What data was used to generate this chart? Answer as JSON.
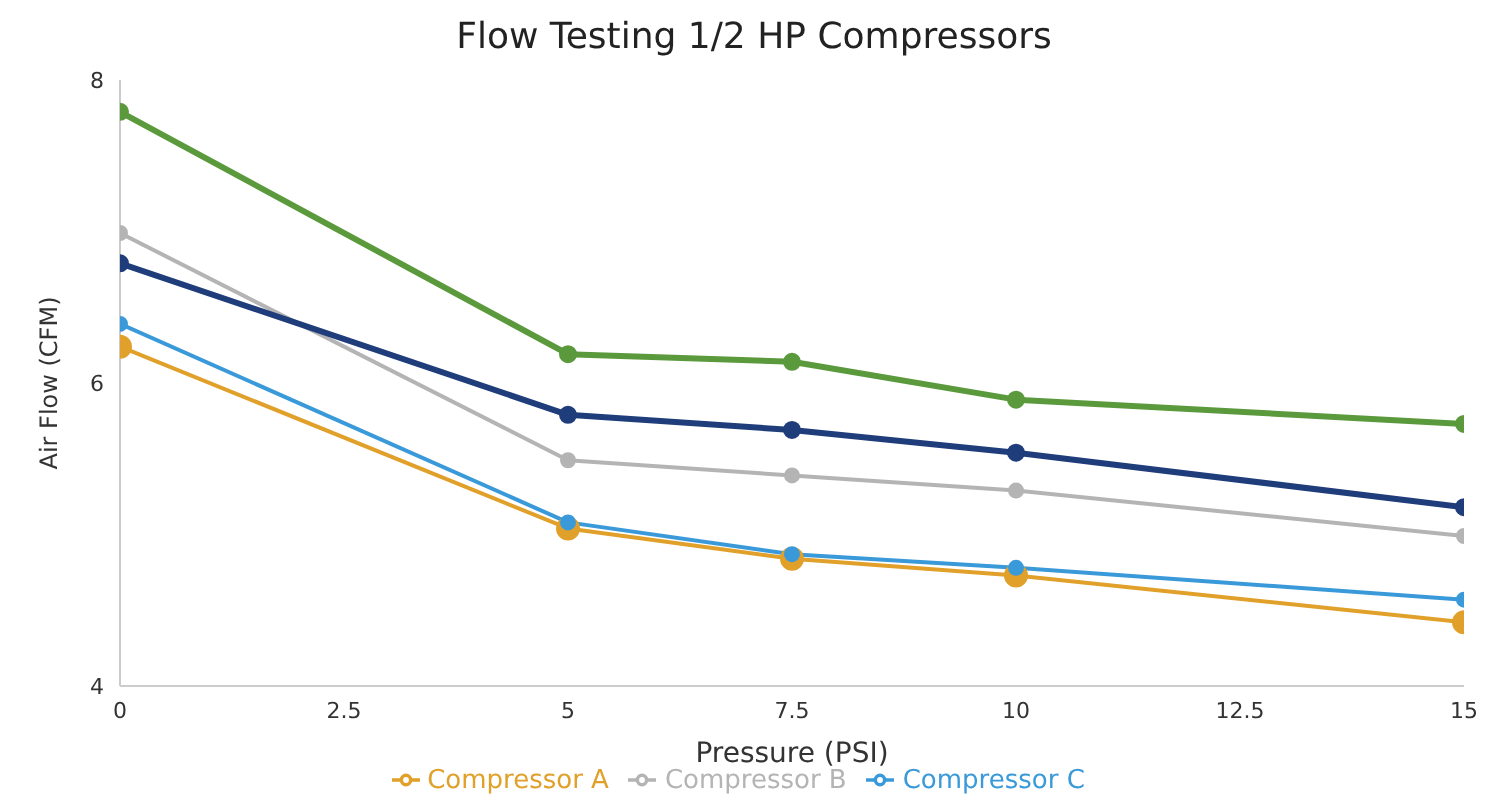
{
  "chart_data": {
    "type": "line",
    "title": "Flow Testing 1/2 HP Compressors",
    "xlabel": "Pressure (PSI)",
    "ylabel": "Air Flow (CFM)",
    "x": [
      0,
      5,
      7.5,
      10,
      15
    ],
    "series": [
      {
        "name": "Compressor A",
        "color": "#e0a02a",
        "values": [
          6.24,
          5.04,
          4.84,
          4.73,
          4.42
        ]
      },
      {
        "name": "Compressor B",
        "color": "#b4b4b4",
        "values": [
          6.99,
          5.49,
          5.39,
          5.29,
          4.99
        ]
      },
      {
        "name": "Compressor C",
        "color": "#3a9ad9",
        "values": [
          6.39,
          5.08,
          4.87,
          4.78,
          4.57
        ]
      },
      {
        "color": "#1f3d7a",
        "values": [
          6.79,
          5.79,
          5.69,
          5.54,
          5.18
        ]
      },
      {
        "color": "#5b9a3c",
        "values": [
          7.79,
          6.19,
          6.14,
          5.89,
          5.73
        ]
      }
    ],
    "xlim": [
      0,
      15
    ],
    "xticks": [
      0,
      2.5,
      5,
      7.5,
      10,
      12.5,
      15
    ],
    "ylim": [
      4,
      8
    ],
    "yticks": [
      4,
      6,
      8
    ],
    "grid": false,
    "legend": "bottom",
    "marker": "circle",
    "line_style": "solid"
  }
}
